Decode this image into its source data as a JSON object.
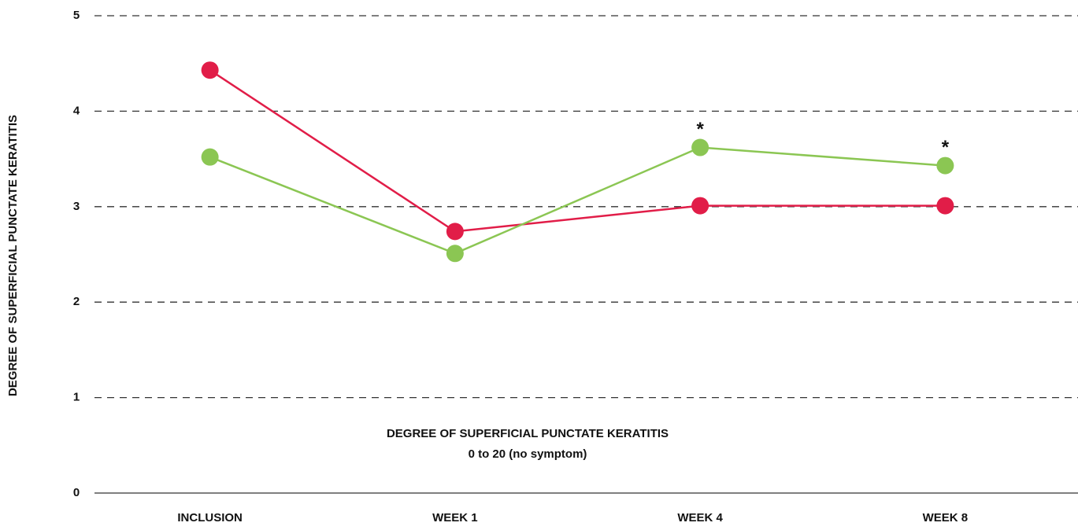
{
  "chart_data": {
    "type": "line",
    "ylabel": "DEGREE OF SUPERFICIAL PUNCTATE KERATITIS",
    "notes": [
      "DEGREE OF SUPERFICIAL PUNCTATE KERATITIS",
      "0 to 20 (no symptom)"
    ],
    "categories": [
      "INCLUSION",
      "WEEK 1",
      "WEEK 4",
      "WEEK 8"
    ],
    "series": [
      {
        "color": "#e11d48",
        "values": [
          4.43,
          2.74,
          3.01,
          3.01
        ]
      },
      {
        "color": "#8bc653",
        "values": [
          3.52,
          2.51,
          3.62,
          3.43
        ]
      }
    ],
    "annotations": [
      {
        "text": "*",
        "series": 1,
        "at": "WEEK 4"
      },
      {
        "text": "*",
        "series": 1,
        "at": "WEEK 8"
      }
    ],
    "ylim": [
      0,
      5
    ],
    "yticks": [
      0,
      1,
      2,
      3,
      4,
      5
    ],
    "grid": true
  }
}
